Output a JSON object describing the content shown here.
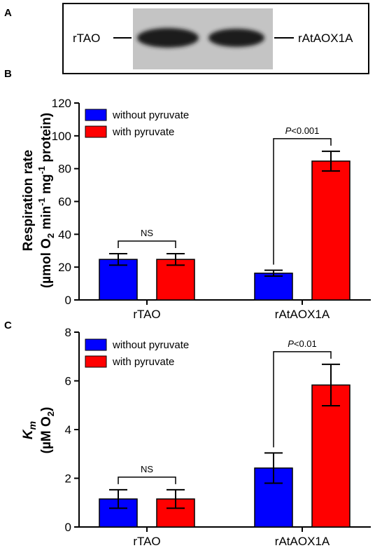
{
  "panels": {
    "a": {
      "letter": "A"
    },
    "b": {
      "letter": "B"
    },
    "c": {
      "letter": "C"
    }
  },
  "blot": {
    "left_label": "rTAO",
    "right_label": "rAtAOX1A"
  },
  "colors": {
    "without": "#0000ff",
    "with": "#ff0000",
    "blot_bg": "#c4c4c4",
    "band": "#1e1e1e"
  },
  "legend": {
    "without": "without pyruvate",
    "with": "with pyruvate"
  },
  "chart_data": [
    {
      "type": "bar",
      "title": "",
      "xlabel": "",
      "ylabel_line1": "Respiration rate",
      "ylabel_line2": "(µmol O2 min-1 mg-1 protein)",
      "categories": [
        "rTAO",
        "rAtAOX1A"
      ],
      "ylim": [
        0,
        120
      ],
      "yticks": [
        0,
        20,
        40,
        60,
        80,
        100,
        120
      ],
      "series": [
        {
          "name": "without pyruvate",
          "values": [
            24.7,
            16.3
          ],
          "errors": [
            3.5,
            1.8
          ]
        },
        {
          "name": "with pyruvate",
          "values": [
            24.7,
            84.6
          ],
          "errors": [
            3.5,
            6.0
          ]
        }
      ],
      "annotations": [
        {
          "text": "NS",
          "category": 0
        },
        {
          "text": "P<0.001",
          "category": 1
        }
      ]
    },
    {
      "type": "bar",
      "title": "",
      "xlabel": "",
      "ylabel_line1": "Km",
      "ylabel_line2": "(µM O2)",
      "categories": [
        "rTAO",
        "rAtAOX1A"
      ],
      "ylim": [
        0,
        8
      ],
      "yticks": [
        0,
        2,
        4,
        6,
        8
      ],
      "series": [
        {
          "name": "without pyruvate",
          "values": [
            1.15,
            2.42
          ],
          "errors": [
            0.38,
            0.62
          ]
        },
        {
          "name": "with pyruvate",
          "values": [
            1.15,
            5.83
          ],
          "errors": [
            0.38,
            0.85
          ]
        }
      ],
      "annotations": [
        {
          "text": "NS",
          "category": 0
        },
        {
          "text": "P<0.01",
          "category": 1
        }
      ]
    }
  ]
}
